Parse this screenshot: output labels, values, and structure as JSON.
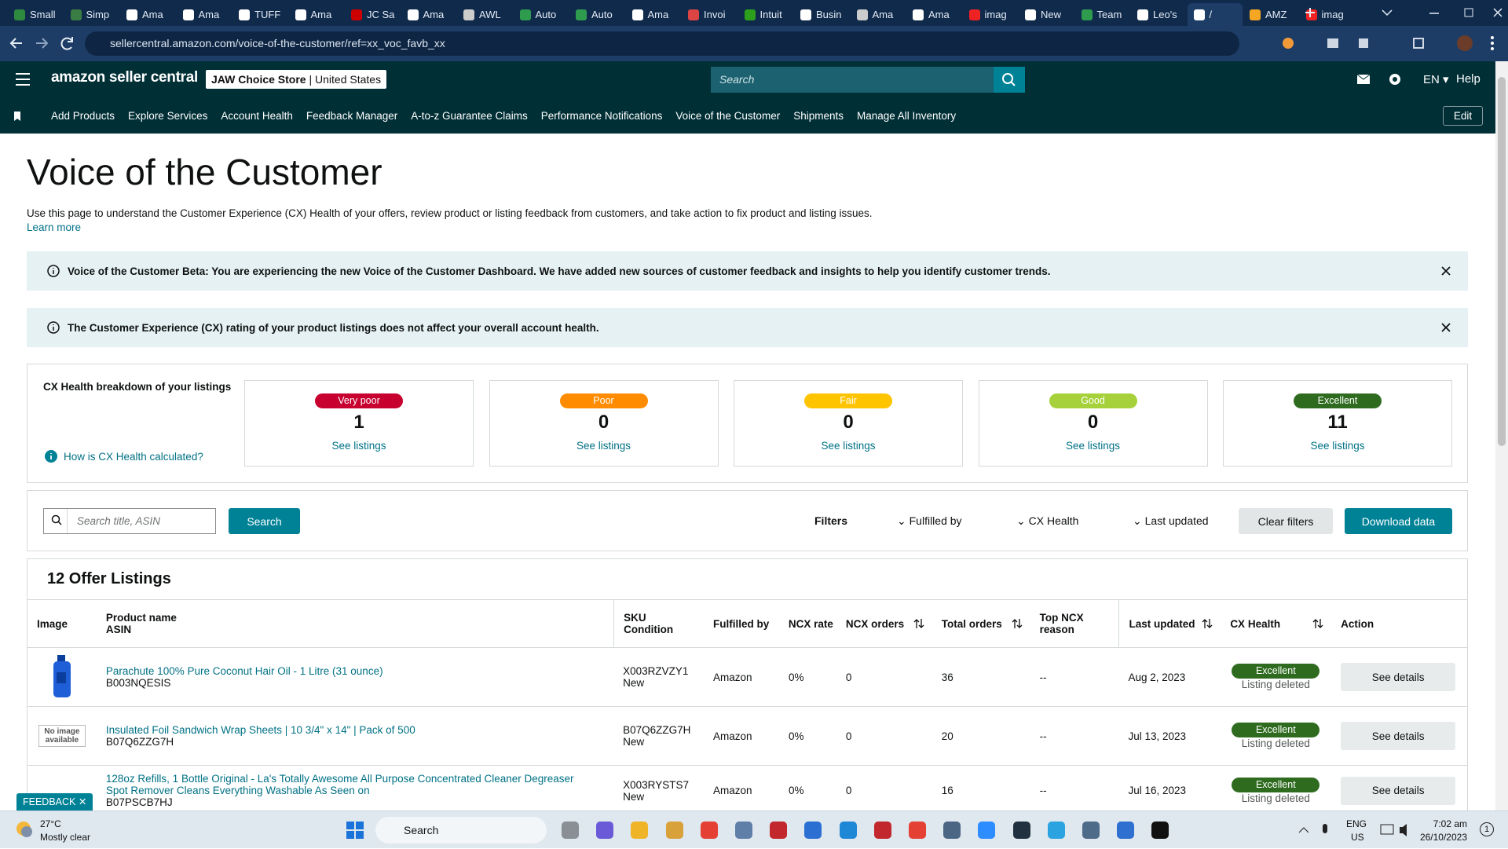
{
  "browser": {
    "tabs": [
      "Small",
      "Simp",
      "Ama",
      "Ama",
      "TUFF",
      "Ama",
      "JC Sa",
      "Ama",
      "AWL",
      "Auto",
      "Auto",
      "Ama",
      "Invoi",
      "Intuit",
      "Busin",
      "Ama",
      "Ama",
      "imag",
      "New",
      "Team",
      "Leo's",
      "/",
      "AMZ",
      "imag"
    ],
    "active_tab": 21,
    "url": "sellercentral.amazon.com/voice-of-the-customer/ref=xx_voc_favb_xx"
  },
  "header": {
    "logo": "amazon seller central",
    "store": "JAW Choice Store",
    "region": "United States",
    "search_placeholder": "Search",
    "language": "EN",
    "help": "Help"
  },
  "nav": {
    "items": [
      "Add Products",
      "Explore Services",
      "Account Health",
      "Feedback Manager",
      "A-to-z Guarantee Claims",
      "Performance Notifications",
      "Voice of the Customer",
      "Shipments",
      "Manage All Inventory"
    ],
    "edit": "Edit"
  },
  "page": {
    "title": "Voice of the Customer",
    "description": "Use this page to understand the Customer Experience (CX) Health of your offers, review product or listing feedback from customers, and take action to fix product and listing issues.",
    "learn_more": "Learn more"
  },
  "alerts": [
    "Voice of the Customer Beta: You are experiencing the new Voice of the Customer Dashboard. We have added new sources of customer feedback and insights to help you identify customer trends.",
    "The Customer Experience (CX) rating of your product listings does not affect your overall account health."
  ],
  "cx_health": {
    "title": "CX Health breakdown of your listings",
    "help_link": "How is CX Health calculated?",
    "cards": [
      {
        "label": "Very poor",
        "count": 1,
        "link": "See listings",
        "color": "#c7002f"
      },
      {
        "label": "Poor",
        "count": 0,
        "link": "See listings",
        "color": "#ff8c00"
      },
      {
        "label": "Fair",
        "count": 0,
        "link": "See listings",
        "color": "#ffc400"
      },
      {
        "label": "Good",
        "count": 0,
        "link": "See listings",
        "color": "#a6d13a"
      },
      {
        "label": "Excellent",
        "count": 11,
        "link": "See listings",
        "color": "#2e6b1f"
      }
    ]
  },
  "filters": {
    "search_placeholder": "Search title, ASIN",
    "search_button": "Search",
    "label": "Filters",
    "dropdowns": [
      "Fulfilled by",
      "CX Health",
      "Last updated"
    ],
    "clear": "Clear filters",
    "download": "Download data"
  },
  "listings": {
    "title": "12 Offer Listings",
    "columns": [
      {
        "lines": [
          "Image"
        ]
      },
      {
        "lines": [
          "Product name",
          "ASIN"
        ]
      },
      {
        "lines": [
          "SKU",
          "Condition"
        ]
      },
      {
        "lines": [
          "Fulfilled by"
        ]
      },
      {
        "lines": [
          "NCX rate"
        ]
      },
      {
        "lines": [
          "NCX orders"
        ],
        "sortable": true
      },
      {
        "lines": [
          "Total orders"
        ],
        "sortable": true
      },
      {
        "lines": [
          "Top NCX",
          "reason"
        ]
      },
      {
        "lines": [
          "Last updated"
        ],
        "sortable": true
      },
      {
        "lines": [
          "CX Health"
        ],
        "sortable": true
      },
      {
        "lines": [
          "Action"
        ]
      }
    ],
    "rows": [
      {
        "product": "Parachute 100% Pure Coconut Hair Oil - 1 Litre (31 ounce)",
        "asin": "B003NQESIS",
        "sku": "X003RZVZY1",
        "condition": "New",
        "fulfilled_by": "Amazon",
        "ncx_rate": "0%",
        "ncx_orders": 0,
        "total_orders": 36,
        "top_reason": "--",
        "last_updated": "Aug 2, 2023",
        "cx_health": "Excellent",
        "status": "Listing deleted",
        "action": "See details"
      },
      {
        "image_label": "No image available",
        "product": "Insulated Foil Sandwich Wrap Sheets | 10 3/4\" x 14\" | Pack of 500",
        "asin": "B07Q6ZZG7H",
        "sku": "B07Q6ZZG7H",
        "condition": "New",
        "fulfilled_by": "Amazon",
        "ncx_rate": "0%",
        "ncx_orders": 0,
        "total_orders": 20,
        "top_reason": "--",
        "last_updated": "Jul 13, 2023",
        "cx_health": "Excellent",
        "status": "Listing deleted",
        "action": "See details"
      },
      {
        "product": "128oz Refills, 1 Bottle Original - La's Totally Awesome All Purpose Concentrated Cleaner Degreaser Spot Remover Cleans Everything Washable As Seen on",
        "asin": "B07PSCB7HJ",
        "sku": "X003RYSTS7",
        "condition": "New",
        "fulfilled_by": "Amazon",
        "ncx_rate": "0%",
        "ncx_orders": 0,
        "total_orders": 16,
        "top_reason": "--",
        "last_updated": "Jul 16, 2023",
        "cx_health": "Excellent",
        "status": "Listing deleted",
        "action": "See details"
      }
    ]
  },
  "feedback": "FEEDBACK",
  "taskbar": {
    "temperature": "27°C",
    "weather": "Mostly clear",
    "search": "Search",
    "language": "ENG",
    "region": "US",
    "time": "7:02 am",
    "date": "26/10/2023",
    "notifications": "1"
  }
}
